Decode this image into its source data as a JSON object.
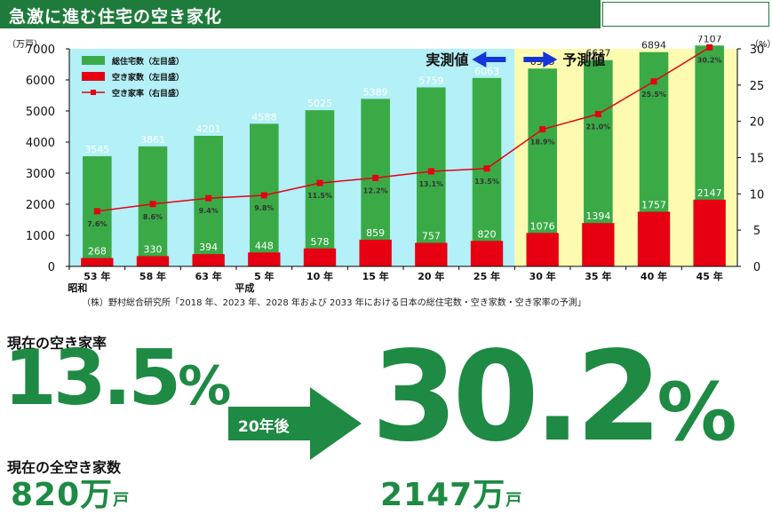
{
  "header": {
    "title": "急激に進む住宅の空き家化"
  },
  "chart_data": {
    "type": "bar",
    "categories": [
      "53 年",
      "58 年",
      "63 年",
      "5 年",
      "10 年",
      "15 年",
      "20 年",
      "25 年",
      "30 年",
      "35 年",
      "40 年",
      "45 年"
    ],
    "era_labels": [
      {
        "index": 0,
        "text": "昭和"
      },
      {
        "index": 3,
        "text": "平成"
      }
    ],
    "series": [
      {
        "name": "総住宅数（左目盛）",
        "axis": "left",
        "type": "bar",
        "values": [
          3545,
          3861,
          4201,
          4588,
          5025,
          5389,
          5759,
          6063,
          6365,
          6637,
          6894,
          7107
        ],
        "color": "#3aaa47"
      },
      {
        "name": "空き家数（左目盛）",
        "axis": "left",
        "type": "bar",
        "values": [
          268,
          330,
          394,
          448,
          578,
          859,
          757,
          820,
          1076,
          1394,
          1757,
          2147
        ],
        "color": "#e60012"
      },
      {
        "name": "空き家率（右目盛）",
        "axis": "right",
        "type": "line",
        "values": [
          7.6,
          8.6,
          9.4,
          9.8,
          11.5,
          12.2,
          13.1,
          13.5,
          18.9,
          21.0,
          25.5,
          30.2
        ],
        "labels": [
          "7.6%",
          "8.6%",
          "9.4%",
          "9.8%",
          "11.5%",
          "12.2%",
          "13.1%",
          "13.5%",
          "18.9%",
          "21.0%",
          "25.5%",
          "30.2%"
        ],
        "color": "#e60012"
      }
    ],
    "y_left": {
      "unit": "（万戸）",
      "lim": [
        0,
        7000
      ],
      "ticks": [
        0,
        1000,
        2000,
        3000,
        4000,
        5000,
        6000,
        7000
      ]
    },
    "y_right": {
      "unit": "（%）",
      "lim": [
        0,
        30
      ],
      "ticks": [
        0,
        5,
        10,
        15,
        20,
        25,
        30
      ]
    },
    "regions": [
      {
        "label": "実測値",
        "from_index": 0,
        "to_index": 7,
        "color": "#b3f0f7"
      },
      {
        "label": "予測値",
        "from_index": 8,
        "to_index": 11,
        "color": "#fdfbb0"
      }
    ],
    "legend_position": "top-left",
    "grid": false
  },
  "source": "（株）野村総合研究所「2018 年、2023 年、2028 年および 2033 年における日本の総住宅数・空き家数・空き家率の予測」",
  "summary": {
    "current_rate_label": "現在の空き家率",
    "current_rate_value": "13.5",
    "current_rate_unit": "%",
    "arrow_label": "20年後",
    "future_rate_value": "30.2",
    "future_rate_unit": "%",
    "current_vacant_label": "現在の全空き家数",
    "current_vacant_value": "820万",
    "current_vacant_unit": "戸",
    "future_vacant_value": "2147万",
    "future_vacant_unit": "戸"
  }
}
